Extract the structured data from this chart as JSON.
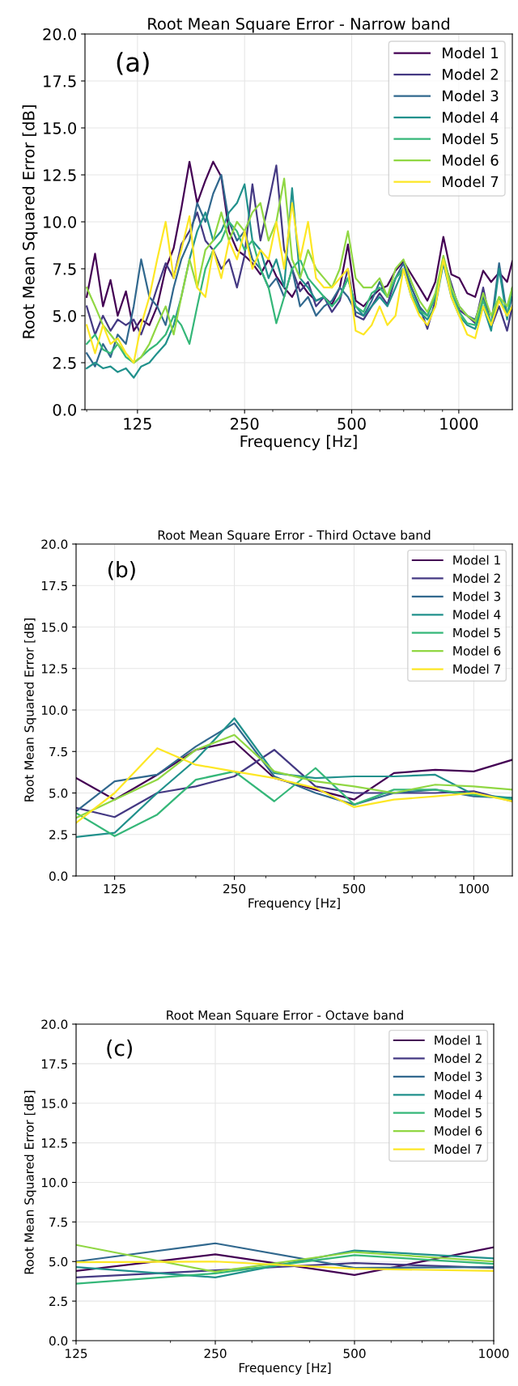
{
  "chart_data": [
    {
      "type": "line",
      "title": "Root Mean Square Error - Narrow band",
      "xlabel": "Frequency [Hz]",
      "ylabel": "Root Mean Squared Error [dB]",
      "annotations": [
        "(a)"
      ],
      "log": "x",
      "grid": true,
      "legend": "top right",
      "xlim": [
        89,
        1414
      ],
      "xticks": [
        125,
        250,
        500,
        1000
      ],
      "ylim": [
        0,
        20
      ],
      "yticks": [
        {
          "value": 0,
          "label": "0.0"
        },
        {
          "value": 2.5,
          "label": "2.5"
        },
        {
          "value": 5,
          "label": "5.0"
        },
        {
          "value": 7.5,
          "label": "7.5"
        },
        {
          "value": 10,
          "label": "10.0"
        },
        {
          "value": 12.5,
          "label": "12.5"
        },
        {
          "value": 15,
          "label": "15.0"
        },
        {
          "value": 17.5,
          "label": "17.5"
        },
        {
          "value": 20,
          "label": "20.0"
        }
      ],
      "x": [
        90,
        95,
        100,
        105,
        110,
        116,
        122,
        128,
        135,
        142,
        150,
        158,
        166,
        175,
        184,
        194,
        204,
        215,
        226,
        238,
        250,
        263,
        277,
        292,
        307,
        323,
        340,
        358,
        377,
        397,
        418,
        440,
        463,
        488,
        513,
        540,
        569,
        599,
        630,
        664,
        699,
        736,
        775,
        816,
        859,
        905,
        953,
        1003,
        1056,
        1112,
        1171,
        1233,
        1298,
        1367,
        1414
      ],
      "series": [
        {
          "name": "Model 1",
          "color": "#440154",
          "values": [
            6.0,
            8.3,
            5.5,
            6.9,
            5.0,
            6.3,
            4.2,
            4.8,
            4.5,
            5.5,
            7.5,
            8.6,
            10.7,
            13.2,
            11.0,
            12.2,
            13.2,
            12.4,
            9.5,
            8.5,
            8.2,
            7.8,
            7.2,
            8.0,
            7.1,
            6.5,
            6.0,
            6.8,
            6.2,
            5.8,
            6.0,
            5.6,
            6.5,
            8.8,
            5.8,
            5.5,
            6.0,
            6.4,
            6.6,
            7.4,
            7.9,
            7.2,
            6.5,
            5.8,
            6.8,
            9.2,
            7.2,
            7.0,
            6.2,
            6.0,
            7.4,
            6.8,
            7.3,
            6.8,
            7.9
          ]
        },
        {
          "name": "Model 2",
          "color": "#443983",
          "values": [
            5.5,
            4.0,
            5.0,
            4.2,
            4.8,
            4.5,
            4.8,
            4.0,
            5.2,
            6.5,
            7.8,
            7.0,
            8.8,
            9.5,
            10.5,
            9.0,
            8.5,
            7.5,
            8.0,
            6.5,
            8.2,
            12.0,
            9.0,
            11.0,
            13.0,
            8.5,
            7.5,
            6.3,
            6.8,
            5.5,
            6.0,
            5.2,
            5.8,
            7.5,
            5.0,
            4.8,
            5.5,
            6.2,
            5.6,
            7.0,
            7.5,
            6.5,
            5.5,
            4.3,
            5.8,
            8.0,
            6.7,
            5.3,
            5.0,
            4.6,
            6.5,
            4.4,
            5.5,
            4.2,
            5.5
          ]
        },
        {
          "name": "Model 3",
          "color": "#31688e",
          "values": [
            3.0,
            2.3,
            3.5,
            2.8,
            4.0,
            3.5,
            5.5,
            8.0,
            6.0,
            5.5,
            4.5,
            6.5,
            8.0,
            9.0,
            11.0,
            10.0,
            11.5,
            12.5,
            10.0,
            9.0,
            9.5,
            8.0,
            7.5,
            6.5,
            7.0,
            6.0,
            7.5,
            5.5,
            6.0,
            5.0,
            5.5,
            5.8,
            6.5,
            6.0,
            5.2,
            5.0,
            5.8,
            6.8,
            6.0,
            7.0,
            7.8,
            6.5,
            5.5,
            5.0,
            6.0,
            8.0,
            6.5,
            5.5,
            5.0,
            4.8,
            6.0,
            4.5,
            7.8,
            5.0,
            6.0
          ]
        },
        {
          "name": "Model 4",
          "color": "#21918c",
          "values": [
            2.2,
            2.5,
            2.2,
            2.3,
            2.0,
            2.2,
            1.7,
            2.3,
            2.5,
            3.0,
            3.5,
            4.5,
            6.0,
            8.0,
            9.5,
            10.5,
            9.0,
            9.5,
            10.5,
            11.0,
            12.0,
            9.0,
            8.5,
            7.0,
            8.0,
            6.5,
            11.8,
            7.0,
            6.5,
            5.8,
            6.0,
            5.5,
            6.0,
            7.0,
            5.5,
            5.0,
            5.5,
            6.0,
            5.5,
            6.5,
            7.5,
            6.0,
            5.2,
            4.8,
            5.5,
            7.8,
            6.0,
            5.0,
            4.5,
            4.3,
            5.5,
            4.2,
            7.5,
            4.8,
            6.5
          ]
        },
        {
          "name": "Model 5",
          "color": "#35b779",
          "values": [
            3.5,
            4.0,
            3.2,
            3.0,
            3.5,
            2.8,
            2.5,
            2.8,
            3.2,
            3.5,
            4.0,
            5.0,
            4.5,
            3.5,
            5.5,
            7.5,
            8.5,
            9.0,
            10.0,
            9.5,
            8.5,
            9.0,
            7.5,
            6.5,
            4.6,
            6.0,
            7.5,
            8.0,
            7.0,
            6.5,
            6.0,
            5.5,
            6.0,
            7.0,
            5.5,
            5.2,
            6.2,
            6.5,
            6.0,
            7.0,
            7.5,
            6.2,
            5.3,
            5.0,
            6.0,
            8.0,
            6.3,
            5.2,
            4.6,
            4.5,
            5.8,
            4.6,
            6.0,
            5.0,
            6.5
          ]
        },
        {
          "name": "Model 6",
          "color": "#90d743",
          "values": [
            6.5,
            5.5,
            4.5,
            4.0,
            3.5,
            3.0,
            2.5,
            2.8,
            3.5,
            4.5,
            5.5,
            4.0,
            6.0,
            8.0,
            6.5,
            8.5,
            9.0,
            10.5,
            9.0,
            10.0,
            9.5,
            10.5,
            11.0,
            9.0,
            10.0,
            12.3,
            8.0,
            7.0,
            8.5,
            7.5,
            7.0,
            6.5,
            7.5,
            9.5,
            7.0,
            6.5,
            6.5,
            7.0,
            6.0,
            7.5,
            8.0,
            6.8,
            5.8,
            5.2,
            6.2,
            8.2,
            6.5,
            5.5,
            5.0,
            4.7,
            6.2,
            5.0,
            6.0,
            5.5,
            6.5
          ]
        },
        {
          "name": "Model 7",
          "color": "#fde725",
          "values": [
            4.5,
            3.0,
            4.5,
            3.5,
            3.8,
            3.0,
            2.5,
            4.5,
            6.0,
            8.0,
            10.0,
            7.0,
            8.5,
            10.3,
            6.5,
            6.0,
            8.5,
            7.0,
            9.0,
            8.0,
            9.5,
            7.5,
            8.5,
            8.0,
            10.0,
            7.5,
            11.0,
            8.0,
            10.0,
            7.0,
            6.5,
            6.5,
            7.0,
            7.5,
            4.2,
            4.0,
            4.5,
            5.5,
            4.5,
            5.0,
            7.5,
            6.0,
            5.0,
            4.5,
            5.5,
            8.0,
            6.0,
            5.0,
            4.0,
            3.8,
            5.5,
            4.5,
            5.8,
            5.0,
            5.5
          ]
        }
      ]
    },
    {
      "type": "line",
      "title": "Root Mean Square Error - Third Octave band",
      "xlabel": "Frequency [Hz]",
      "ylabel": "Root Mean Squared Error [dB]",
      "annotations": [
        "(b)"
      ],
      "log": "x",
      "grid": true,
      "legend": "top right",
      "xlim": [
        100,
        1250
      ],
      "xticks": [
        125,
        250,
        500,
        1000
      ],
      "ylim": [
        0,
        20
      ],
      "yticks": [
        {
          "value": 0,
          "label": "0.0"
        },
        {
          "value": 2.5,
          "label": "2.5"
        },
        {
          "value": 5,
          "label": "5.0"
        },
        {
          "value": 7.5,
          "label": "7.5"
        },
        {
          "value": 10,
          "label": "10.0"
        },
        {
          "value": 12.5,
          "label": "12.5"
        },
        {
          "value": 15,
          "label": "15.0"
        },
        {
          "value": 17.5,
          "label": "17.5"
        },
        {
          "value": 20,
          "label": "20.0"
        }
      ],
      "x": [
        100,
        125,
        160,
        200,
        250,
        315,
        400,
        500,
        630,
        800,
        1000,
        1250
      ],
      "series": [
        {
          "name": "Model 1",
          "color": "#440154",
          "values": [
            5.9,
            4.6,
            6.1,
            7.6,
            8.1,
            5.9,
            5.2,
            4.6,
            6.2,
            6.4,
            6.3,
            7.0
          ]
        },
        {
          "name": "Model 2",
          "color": "#443983",
          "values": [
            4.1,
            3.55,
            5.0,
            5.4,
            6.0,
            7.6,
            5.4,
            5.0,
            5.0,
            5.0,
            5.1,
            4.5
          ]
        },
        {
          "name": "Model 3",
          "color": "#31688e",
          "values": [
            3.9,
            5.7,
            6.1,
            7.8,
            9.2,
            6.0,
            5.0,
            4.3,
            5.0,
            5.2,
            4.8,
            4.7
          ]
        },
        {
          "name": "Model 4",
          "color": "#21918c",
          "values": [
            2.35,
            2.6,
            5.0,
            7.0,
            9.5,
            6.2,
            5.9,
            6.0,
            6.0,
            6.1,
            4.9,
            4.7
          ]
        },
        {
          "name": "Model 5",
          "color": "#35b779",
          "values": [
            3.8,
            2.4,
            3.7,
            5.8,
            6.3,
            4.5,
            6.5,
            4.3,
            5.2,
            5.2,
            4.9,
            4.6
          ]
        },
        {
          "name": "Model 6",
          "color": "#90d743",
          "values": [
            3.5,
            4.6,
            5.8,
            7.6,
            8.5,
            6.3,
            5.7,
            5.4,
            5.0,
            5.5,
            5.4,
            5.2
          ]
        },
        {
          "name": "Model 7",
          "color": "#fde725",
          "values": [
            3.2,
            5.0,
            7.7,
            6.7,
            6.3,
            5.9,
            5.3,
            4.15,
            4.6,
            4.8,
            5.0,
            4.5
          ]
        }
      ]
    },
    {
      "type": "line",
      "title": "Root Mean Square Error - Octave band",
      "xlabel": "Frequency [Hz]",
      "ylabel": "Root Mean Squared Error [dB]",
      "annotations": [
        "(c)"
      ],
      "log": "x",
      "grid": true,
      "legend": "top right",
      "xlim": [
        125,
        1000
      ],
      "xticks": [
        125,
        250,
        500,
        1000
      ],
      "ylim": [
        0,
        20
      ],
      "yticks": [
        {
          "value": 0,
          "label": "0.0"
        },
        {
          "value": 2.5,
          "label": "2.5"
        },
        {
          "value": 5,
          "label": "5.0"
        },
        {
          "value": 7.5,
          "label": "7.5"
        },
        {
          "value": 10,
          "label": "10.0"
        },
        {
          "value": 12.5,
          "label": "12.5"
        },
        {
          "value": 15,
          "label": "15.0"
        },
        {
          "value": 17.5,
          "label": "17.5"
        },
        {
          "value": 20,
          "label": "20.0"
        }
      ],
      "x": [
        125,
        250,
        500,
        1000
      ],
      "series": [
        {
          "name": "Model 1",
          "color": "#440154",
          "values": [
            4.4,
            5.45,
            4.15,
            5.9
          ]
        },
        {
          "name": "Model 2",
          "color": "#443983",
          "values": [
            4.0,
            4.45,
            4.9,
            4.6
          ]
        },
        {
          "name": "Model 3",
          "color": "#31688e",
          "values": [
            5.0,
            6.15,
            4.6,
            4.65
          ]
        },
        {
          "name": "Model 4",
          "color": "#21918c",
          "values": [
            4.65,
            4.0,
            5.7,
            5.2
          ]
        },
        {
          "name": "Model 5",
          "color": "#35b779",
          "values": [
            3.6,
            4.25,
            5.4,
            4.85
          ]
        },
        {
          "name": "Model 6",
          "color": "#90d743",
          "values": [
            6.05,
            4.35,
            5.6,
            5.0
          ]
        },
        {
          "name": "Model 7",
          "color": "#fde725",
          "values": [
            4.95,
            5.0,
            4.55,
            4.4
          ]
        }
      ]
    }
  ]
}
